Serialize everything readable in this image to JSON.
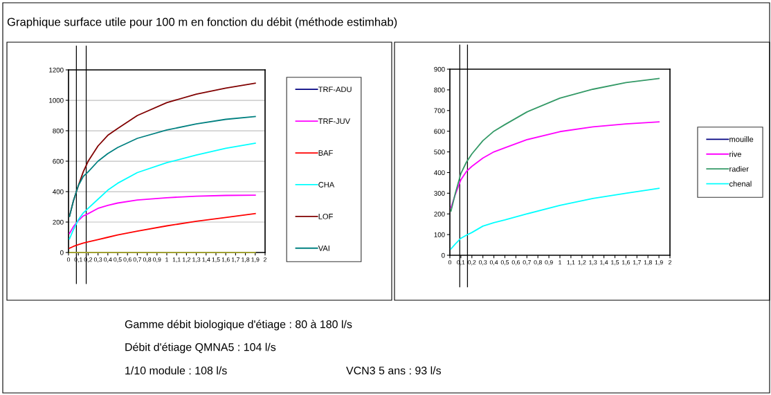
{
  "chart_data": [
    {
      "type": "line",
      "title": "Graphique surface utile pour 100 m en fonction du débit (méthode estimhab)",
      "x": [
        0.01,
        0.05,
        0.1,
        0.15,
        0.2,
        0.3,
        0.4,
        0.5,
        0.7,
        1.0,
        1.3,
        1.6,
        1.9
      ],
      "series": [
        {
          "name": "TRF-ADU",
          "color": "#000080",
          "values": [
            null,
            null,
            null,
            null,
            null,
            null,
            null,
            null,
            null,
            null,
            null,
            null,
            null
          ]
        },
        {
          "name": "TRF-JUV",
          "color": "#ff00ff",
          "values": [
            125,
            170,
            210,
            240,
            255,
            290,
            310,
            325,
            345,
            360,
            370,
            375,
            377
          ]
        },
        {
          "name": "BAF",
          "color": "#ff0000",
          "values": [
            28,
            40,
            52,
            62,
            70,
            85,
            100,
            115,
            140,
            175,
            205,
            230,
            256
          ]
        },
        {
          "name": "CHA",
          "color": "#00ffff",
          "values": [
            90,
            150,
            215,
            260,
            290,
            350,
            410,
            455,
            525,
            590,
            640,
            685,
            718
          ]
        },
        {
          "name": "LOF",
          "color": "#800000",
          "values": [
            239,
            340,
            440,
            530,
            600,
            700,
            770,
            815,
            900,
            985,
            1040,
            1080,
            1112
          ]
        },
        {
          "name": "VAI",
          "color": "#008080",
          "values": [
            237,
            340,
            440,
            500,
            530,
            600,
            650,
            690,
            750,
            805,
            845,
            875,
            893
          ]
        },
        {
          "color": "#a0a030",
          "values": [
            0,
            0,
            0,
            0,
            0,
            0,
            0,
            0,
            0,
            0,
            0,
            0,
            0
          ]
        }
      ],
      "xlim": [
        0,
        2
      ],
      "xticks": [
        0,
        {
          "value": 0.1,
          "label": "0,1"
        },
        {
          "value": 0.2,
          "label": "0,2"
        },
        {
          "value": 0.3,
          "label": "0,3"
        },
        {
          "value": 0.4,
          "label": "0,4"
        },
        {
          "value": 0.5,
          "label": "0,5"
        },
        {
          "value": 0.6,
          "label": "0,6"
        },
        {
          "value": 0.7,
          "label": "0,7"
        },
        {
          "value": 0.8,
          "label": "0,8"
        },
        {
          "value": 0.9,
          "label": "0,9"
        },
        1,
        {
          "value": 1.1,
          "label": "1,1"
        },
        {
          "value": 1.2,
          "label": "1,2"
        },
        {
          "value": 1.3,
          "label": "1,3"
        },
        {
          "value": 1.4,
          "label": "1,4"
        },
        {
          "value": 1.5,
          "label": "1,5"
        },
        {
          "value": 1.6,
          "label": "1,6"
        },
        {
          "value": 1.7,
          "label": "1,7"
        },
        {
          "value": 1.8,
          "label": "1,8"
        },
        {
          "value": 1.9,
          "label": "1,9"
        },
        2
      ],
      "ylim": [
        0,
        1200
      ],
      "yticks": [
        0,
        200,
        400,
        600,
        800,
        1000,
        1200
      ],
      "grid": "y",
      "legend": "right",
      "marker": "none",
      "line_style": "solid",
      "ref_lines": [
        {
          "axis": "x",
          "value": 0.08,
          "color": "#000000"
        },
        {
          "axis": "x",
          "value": 0.18,
          "color": "#000000"
        }
      ],
      "annotations": [
        "Gamme débit biologique d'étiage : 80 à 180 l/s",
        "Débit d'étiage QMNA5 : 104 l/s",
        "1/10 module : 108 l/s",
        "VCN3 5 ans : 93 l/s"
      ]
    },
    {
      "type": "line",
      "x": [
        0.01,
        0.05,
        0.1,
        0.15,
        0.2,
        0.3,
        0.4,
        0.5,
        0.7,
        1.0,
        1.3,
        1.6,
        1.9
      ],
      "series": [
        {
          "name": "mouille",
          "color": "#000080",
          "values": [
            null,
            null,
            null,
            null,
            null,
            null,
            null,
            null,
            null,
            null,
            null,
            null,
            null
          ]
        },
        {
          "name": "rive",
          "color": "#ff00ff",
          "values": [
            230,
            295,
            365,
            405,
            430,
            470,
            500,
            520,
            559,
            598,
            621,
            635,
            645
          ]
        },
        {
          "name": "radier",
          "color": "#339966",
          "values": [
            214,
            300,
            395,
            450,
            490,
            554,
            600,
            632,
            693,
            760,
            803,
            835,
            855
          ]
        },
        {
          "name": "chenal",
          "color": "#00ffff",
          "values": [
            31,
            55,
            82,
            97,
            110,
            141,
            158,
            171,
            200,
            241,
            275,
            300,
            324
          ]
        }
      ],
      "xlim": [
        0,
        2
      ],
      "xticks": [
        0,
        {
          "value": 0.1,
          "label": "0,1"
        },
        {
          "value": 0.2,
          "label": "0,2"
        },
        {
          "value": 0.3,
          "label": "0,3"
        },
        {
          "value": 0.4,
          "label": "0,4"
        },
        {
          "value": 0.5,
          "label": "0,5"
        },
        {
          "value": 0.6,
          "label": "0,6"
        },
        {
          "value": 0.7,
          "label": "0,7"
        },
        {
          "value": 0.8,
          "label": "0,8"
        },
        {
          "value": 0.9,
          "label": "0,9"
        },
        1,
        {
          "value": 1.1,
          "label": "1,1"
        },
        {
          "value": 1.2,
          "label": "1,2"
        },
        {
          "value": 1.3,
          "label": "1,3"
        },
        {
          "value": 1.4,
          "label": "1,4"
        },
        {
          "value": 1.5,
          "label": "1,5"
        },
        {
          "value": 1.6,
          "label": "1,6"
        },
        {
          "value": 1.7,
          "label": "1,7"
        },
        {
          "value": 1.8,
          "label": "1,8"
        },
        {
          "value": 1.9,
          "label": "1,9"
        },
        2
      ],
      "ylim": [
        0,
        900
      ],
      "yticks": [
        0,
        100,
        200,
        300,
        400,
        500,
        600,
        700,
        800,
        900
      ],
      "legend": "right",
      "marker": "none",
      "line_style": "solid",
      "ref_lines": [
        {
          "axis": "x",
          "value": 0.09,
          "color": "#000000"
        },
        {
          "axis": "x",
          "value": 0.16,
          "color": "#000000"
        }
      ]
    }
  ]
}
